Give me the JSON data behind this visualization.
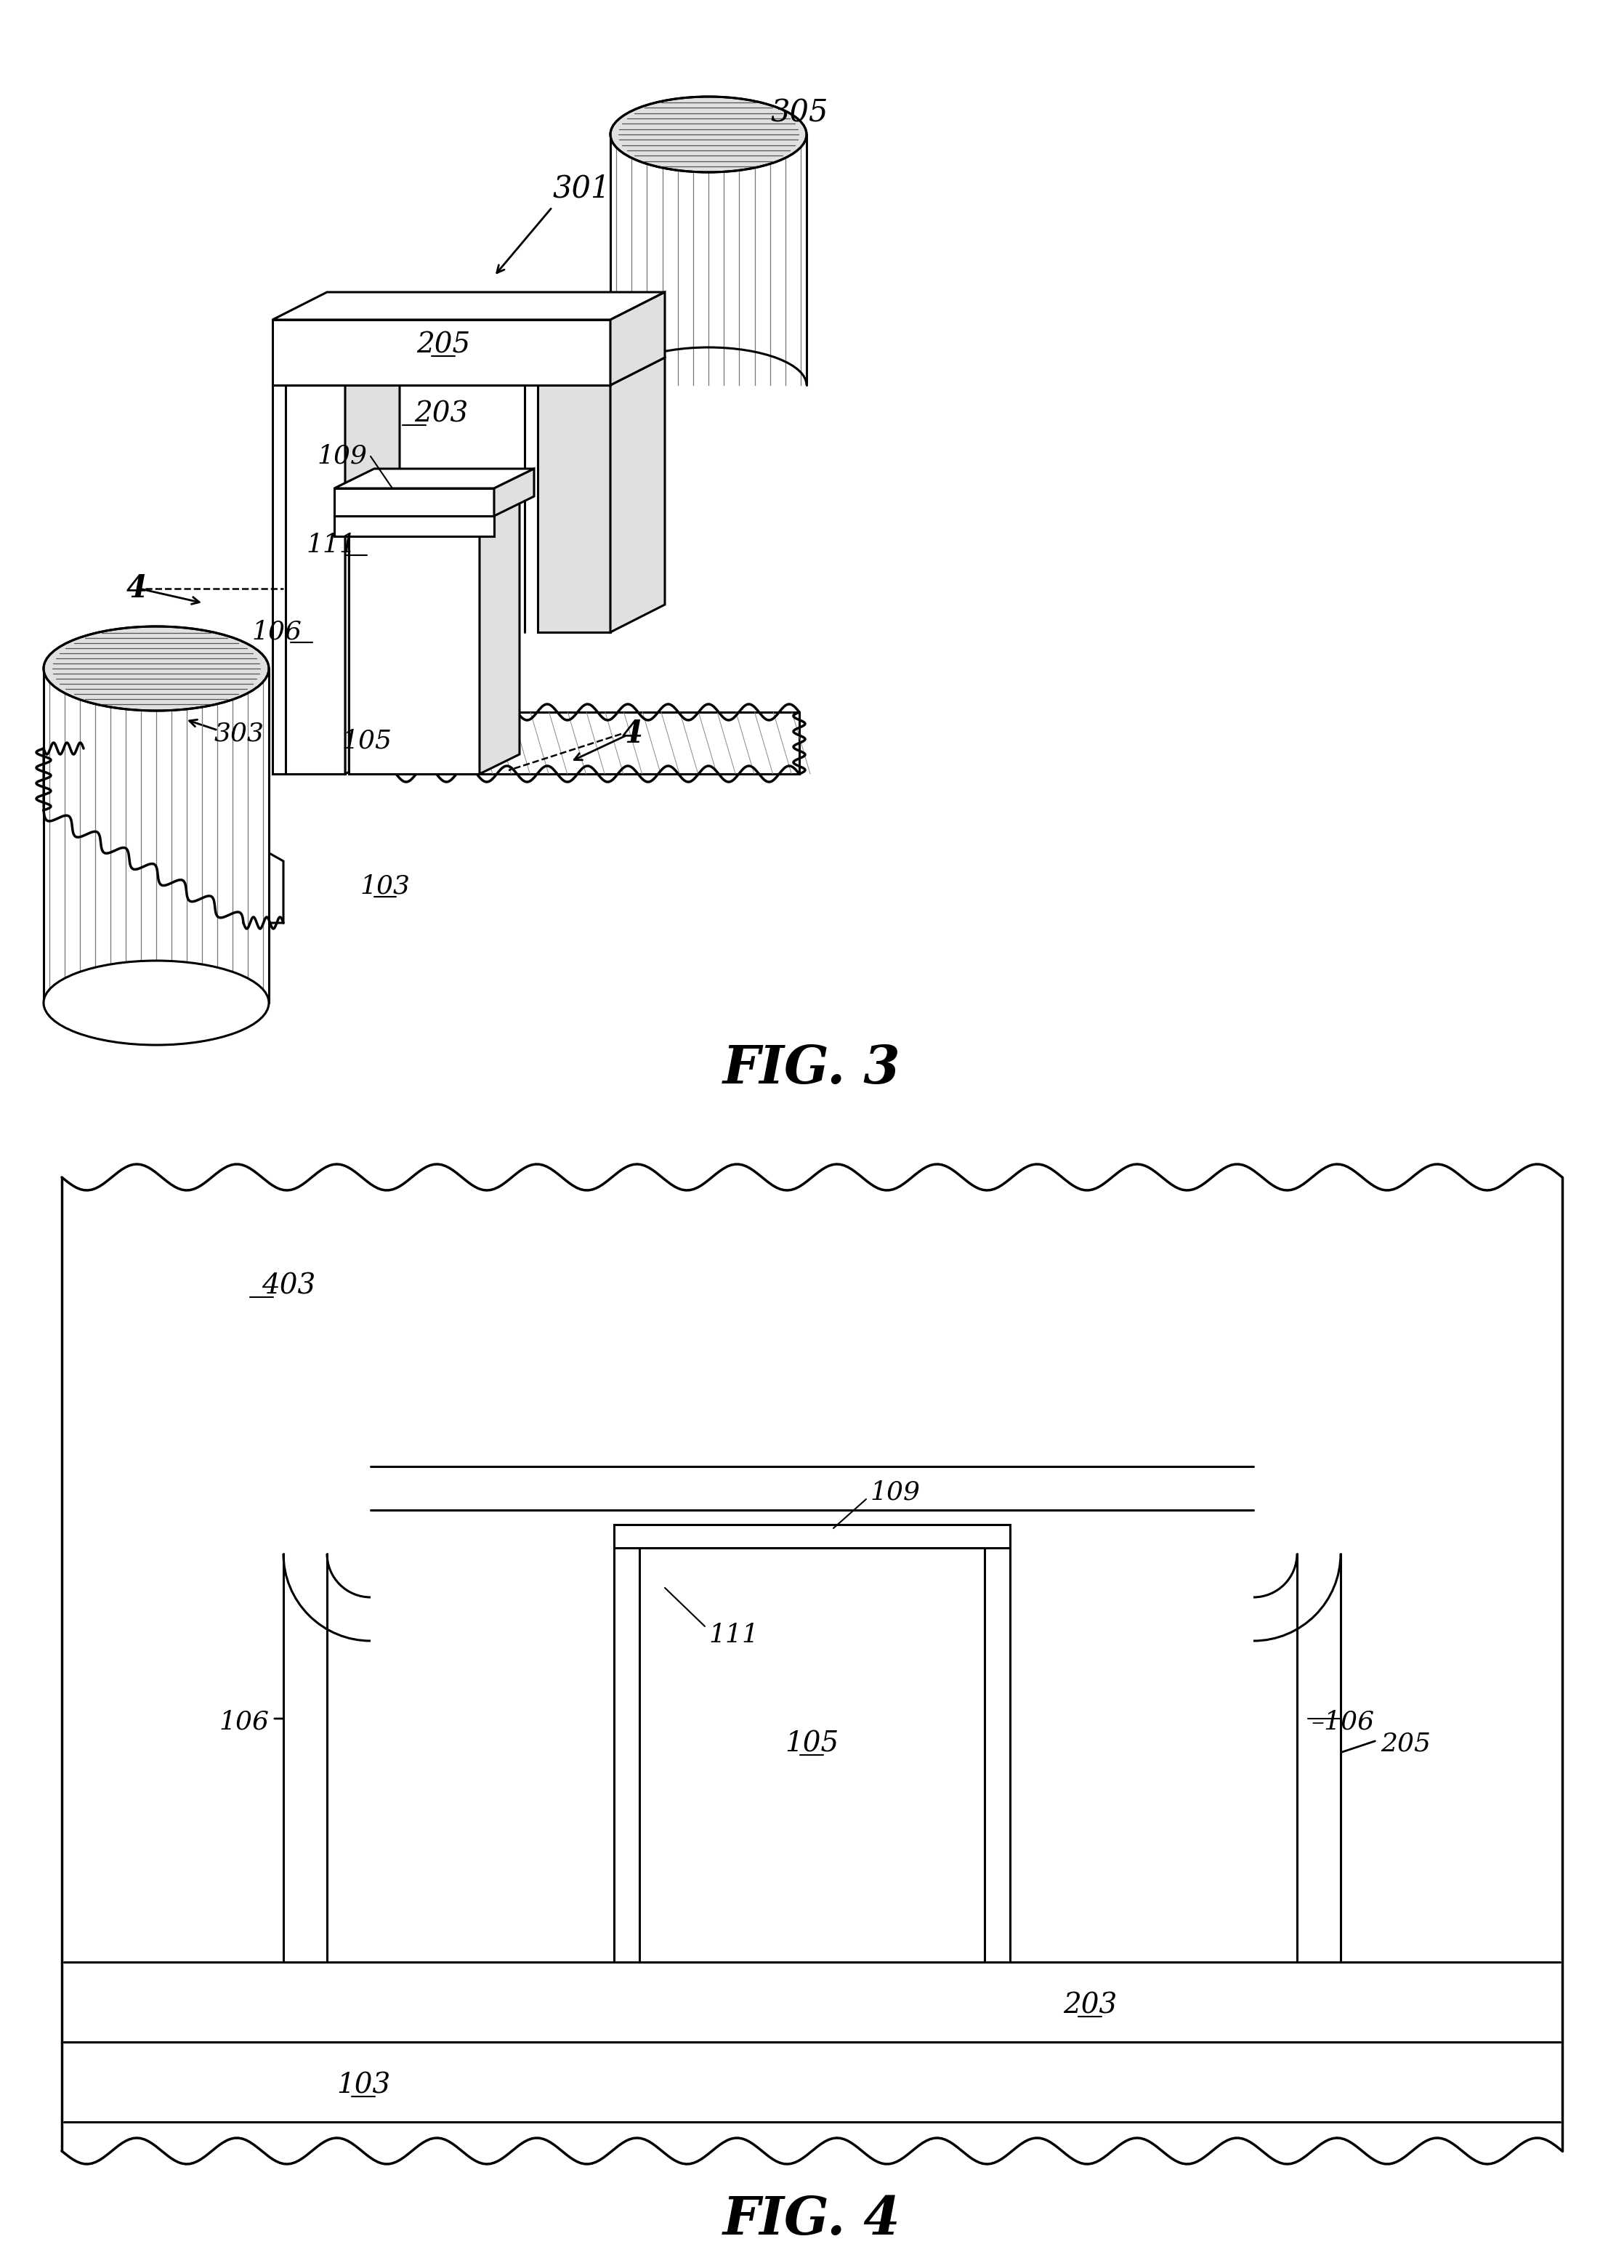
{
  "fig_width": 22.35,
  "fig_height": 31.21,
  "lw_main": 2.2,
  "lw_stripe": 0.9,
  "lw_wavy": 2.5,
  "black": "#000000",
  "white": "#ffffff",
  "lgray": "#e0e0e0",
  "mgray": "#b0b0b0",
  "stripe_color": "#777777",
  "fig3_title": "FIG. 3",
  "fig4_title": "FIG. 4",
  "label_fontsize": 28,
  "title_fontsize": 52
}
